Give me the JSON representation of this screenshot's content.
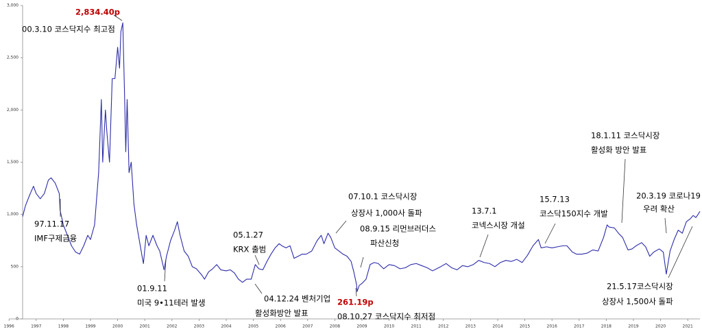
{
  "chart_data": {
    "type": "line",
    "x": [
      1996.5,
      1996.6,
      1996.75,
      1996.9,
      1997.0,
      1997.15,
      1997.3,
      1997.45,
      1997.55,
      1997.7,
      1997.85,
      1997.88,
      1998.0,
      1998.15,
      1998.3,
      1998.45,
      1998.6,
      1998.75,
      1998.9,
      1999.0,
      1999.15,
      1999.3,
      1999.4,
      1999.45,
      1999.55,
      1999.6,
      1999.7,
      1999.8,
      1999.9,
      2000.0,
      2000.07,
      2000.12,
      2000.19,
      2000.25,
      2000.3,
      2000.35,
      2000.42,
      2000.5,
      2000.6,
      2000.7,
      2000.8,
      2000.9,
      2000.95,
      2001.05,
      2001.15,
      2001.3,
      2001.45,
      2001.55,
      2001.71,
      2001.8,
      2001.95,
      2002.1,
      2002.2,
      2002.3,
      2002.45,
      2002.6,
      2002.75,
      2002.9,
      2003.1,
      2003.2,
      2003.35,
      2003.5,
      2003.65,
      2003.8,
      2004.0,
      2004.15,
      2004.3,
      2004.45,
      2004.6,
      2004.75,
      2004.92,
      2005.07,
      2005.2,
      2005.35,
      2005.5,
      2005.65,
      2005.8,
      2005.95,
      2006.05,
      2006.2,
      2006.35,
      2006.5,
      2006.65,
      2006.8,
      2006.95,
      2007.15,
      2007.35,
      2007.5,
      2007.6,
      2007.75,
      2007.85,
      2008.0,
      2008.15,
      2008.3,
      2008.45,
      2008.6,
      2008.7,
      2008.8,
      2008.82,
      2008.9,
      2009.0,
      2009.15,
      2009.3,
      2009.45,
      2009.6,
      2009.8,
      2010.0,
      2010.2,
      2010.4,
      2010.6,
      2010.8,
      2011.0,
      2011.2,
      2011.4,
      2011.6,
      2011.75,
      2011.9,
      2012.1,
      2012.3,
      2012.5,
      2012.7,
      2012.9,
      2013.1,
      2013.3,
      2013.5,
      2013.7,
      2013.9,
      2014.1,
      2014.3,
      2014.5,
      2014.7,
      2014.9,
      2015.1,
      2015.3,
      2015.5,
      2015.6,
      2015.8,
      2016.0,
      2016.2,
      2016.4,
      2016.55,
      2016.75,
      2016.9,
      2017.1,
      2017.3,
      2017.5,
      2017.7,
      2017.9,
      2018.03,
      2018.1,
      2018.3,
      2018.45,
      2018.6,
      2018.8,
      2018.95,
      2019.1,
      2019.3,
      2019.45,
      2019.6,
      2019.75,
      2019.95,
      2020.1,
      2020.21,
      2020.35,
      2020.5,
      2020.65,
      2020.8,
      2020.95,
      2021.1,
      2021.2,
      2021.3,
      2021.38,
      2021.45
    ],
    "values": [
      980,
      1080,
      1180,
      1270,
      1200,
      1150,
      1200,
      1330,
      1350,
      1300,
      1200,
      1040,
      900,
      800,
      700,
      640,
      620,
      700,
      800,
      760,
      900,
      1400,
      2100,
      1500,
      2000,
      1800,
      1500,
      2300,
      2300,
      2600,
      2400,
      2750,
      2834.4,
      2200,
      1600,
      2100,
      1400,
      1500,
      1100,
      900,
      750,
      600,
      530,
      800,
      700,
      800,
      700,
      650,
      470,
      600,
      750,
      850,
      930,
      800,
      650,
      600,
      500,
      480,
      420,
      380,
      450,
      480,
      520,
      470,
      460,
      470,
      440,
      380,
      350,
      380,
      380,
      520,
      480,
      470,
      550,
      620,
      680,
      720,
      700,
      680,
      700,
      580,
      600,
      620,
      620,
      650,
      750,
      800,
      720,
      820,
      780,
      680,
      650,
      620,
      600,
      550,
      450,
      330,
      261.19,
      320,
      340,
      380,
      520,
      540,
      530,
      480,
      520,
      510,
      480,
      490,
      520,
      530,
      510,
      490,
      460,
      480,
      500,
      530,
      490,
      470,
      510,
      500,
      520,
      560,
      540,
      530,
      500,
      540,
      560,
      550,
      570,
      540,
      610,
      700,
      760,
      680,
      690,
      680,
      690,
      700,
      700,
      640,
      620,
      620,
      630,
      660,
      650,
      780,
      900,
      880,
      870,
      820,
      780,
      660,
      670,
      700,
      730,
      690,
      600,
      640,
      670,
      640,
      429,
      650,
      760,
      850,
      820,
      930,
      960,
      990,
      970,
      1000,
      1030
    ],
    "color": "#2b2baa",
    "xlim": [
      1996.5,
      2021.45
    ],
    "ylim": [
      0,
      3000
    ],
    "xticks": [
      1996,
      1997,
      1998,
      1999,
      2000,
      2001,
      2002,
      2003,
      2004,
      2005,
      2006,
      2007,
      2008,
      2009,
      2010,
      2011,
      2012,
      2013,
      2014,
      2015,
      2016,
      2017,
      2018,
      2019,
      2020,
      2021
    ],
    "yticks": [
      0,
      500,
      {
        "value": 1000,
        "label": "1,000"
      },
      {
        "value": 1500,
        "label": "1,500"
      },
      {
        "value": 2000,
        "label": "2,000"
      },
      {
        "value": 2500,
        "label": "2,500"
      },
      {
        "value": 3000,
        "label": "3,000"
      }
    ],
    "grid": false,
    "annotations": [
      {
        "text": "2,834.40p",
        "color": "#c00000"
      },
      {
        "text": "00.3.10 코스닥지수 최고점",
        "color": "#000000"
      },
      {
        "text": "97.11.17",
        "color": "#000000"
      },
      {
        "text": "IMF구제금융",
        "color": "#000000"
      },
      {
        "text": "01.9.11",
        "color": "#000000"
      },
      {
        "text": "미국 9•11테러 발생",
        "color": "#000000"
      },
      {
        "text": "05.1.27",
        "color": "#000000"
      },
      {
        "text": "KRX 출범",
        "color": "#000000"
      },
      {
        "text": "04.12.24 벤처기업",
        "color": "#000000"
      },
      {
        "text": "활성화방안 발표",
        "color": "#000000"
      },
      {
        "text": "07.10.1 코스닥시장",
        "color": "#000000"
      },
      {
        "text": "상장사  1,000사 돌파",
        "color": "#000000"
      },
      {
        "text": "08.9.15 리먼브러더스",
        "color": "#000000"
      },
      {
        "text": "파산신청",
        "color": "#000000"
      },
      {
        "text": "261.19p",
        "color": "#c00000"
      },
      {
        "text": "08.10.27 코스닥지수 최저점",
        "color": "#000000"
      },
      {
        "text": "13.7.1",
        "color": "#000000"
      },
      {
        "text": "코넥스시장 개설",
        "color": "#000000"
      },
      {
        "text": "15.7.13",
        "color": "#000000"
      },
      {
        "text": "코스닥150지수 개발",
        "color": "#000000"
      },
      {
        "text": "18.1.11 코스닥시장",
        "color": "#000000"
      },
      {
        "text": "활성화 방안 발표",
        "color": "#000000"
      },
      {
        "text": "20.3.19 코로나19",
        "color": "#000000"
      },
      {
        "text": "우려 확산",
        "color": "#000000"
      },
      {
        "text": "21.5.17코스닥시장",
        "color": "#000000"
      },
      {
        "text": "상장사 1,500사 돌파",
        "color": "#000000"
      }
    ]
  }
}
